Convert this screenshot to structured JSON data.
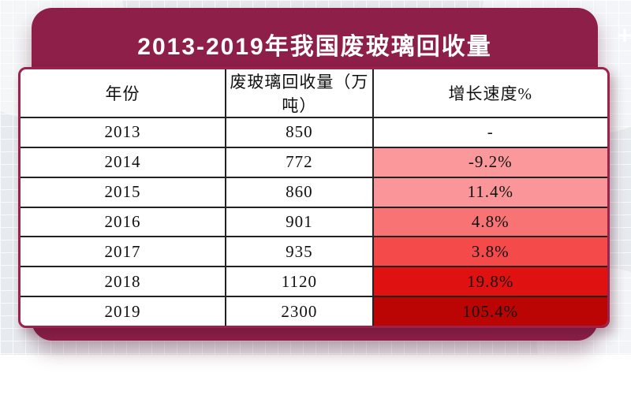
{
  "banner": {
    "title": "2013-2019年我国废玻璃回收量",
    "bg_color": "#8D1F48",
    "text_color": "#FFFFFF"
  },
  "decorations": {
    "plus_glyph": "+"
  },
  "colors": {
    "card_maroon": "#8D1F48",
    "table_outer_border": "#9E2149",
    "cell_grid_line": "#222222",
    "page_background": "#E7EBF0"
  },
  "table": {
    "columns": [
      "年份",
      "废玻璃回收量（万吨）",
      "增长速度%"
    ],
    "rows": [
      {
        "year": "2013",
        "volume": "850",
        "growth": "-",
        "growth_bg": "#FFFFFF"
      },
      {
        "year": "2014",
        "volume": "772",
        "growth": "-9.2%",
        "growth_bg": "#FA989B"
      },
      {
        "year": "2015",
        "volume": "860",
        "growth": "11.4%",
        "growth_bg": "#FA9699"
      },
      {
        "year": "2016",
        "volume": "901",
        "growth": "4.8%",
        "growth_bg": "#F87474"
      },
      {
        "year": "2017",
        "volume": "935",
        "growth": "3.8%",
        "growth_bg": "#F54A4A"
      },
      {
        "year": "2018",
        "volume": "1120",
        "growth": "19.8%",
        "growth_bg": "#E01111"
      },
      {
        "year": "2019",
        "volume": "2300",
        "growth": "105.4%",
        "growth_bg": "#BB0404"
      }
    ]
  },
  "chart_data": {
    "type": "table",
    "title": "2013-2019年我国废玻璃回收量",
    "columns": [
      "年份",
      "废玻璃回收量（万吨）",
      "增长速度%"
    ],
    "years": [
      2013,
      2014,
      2015,
      2016,
      2017,
      2018,
      2019
    ],
    "recycling_volume_wan_tons": [
      850,
      772,
      860,
      901,
      935,
      1120,
      2300
    ],
    "growth_rate_percent": [
      null,
      -9.2,
      11.4,
      4.8,
      3.8,
      19.8,
      105.4
    ],
    "notes": "增长速度 column cells shaded as red heatmap, darker toward later years"
  }
}
